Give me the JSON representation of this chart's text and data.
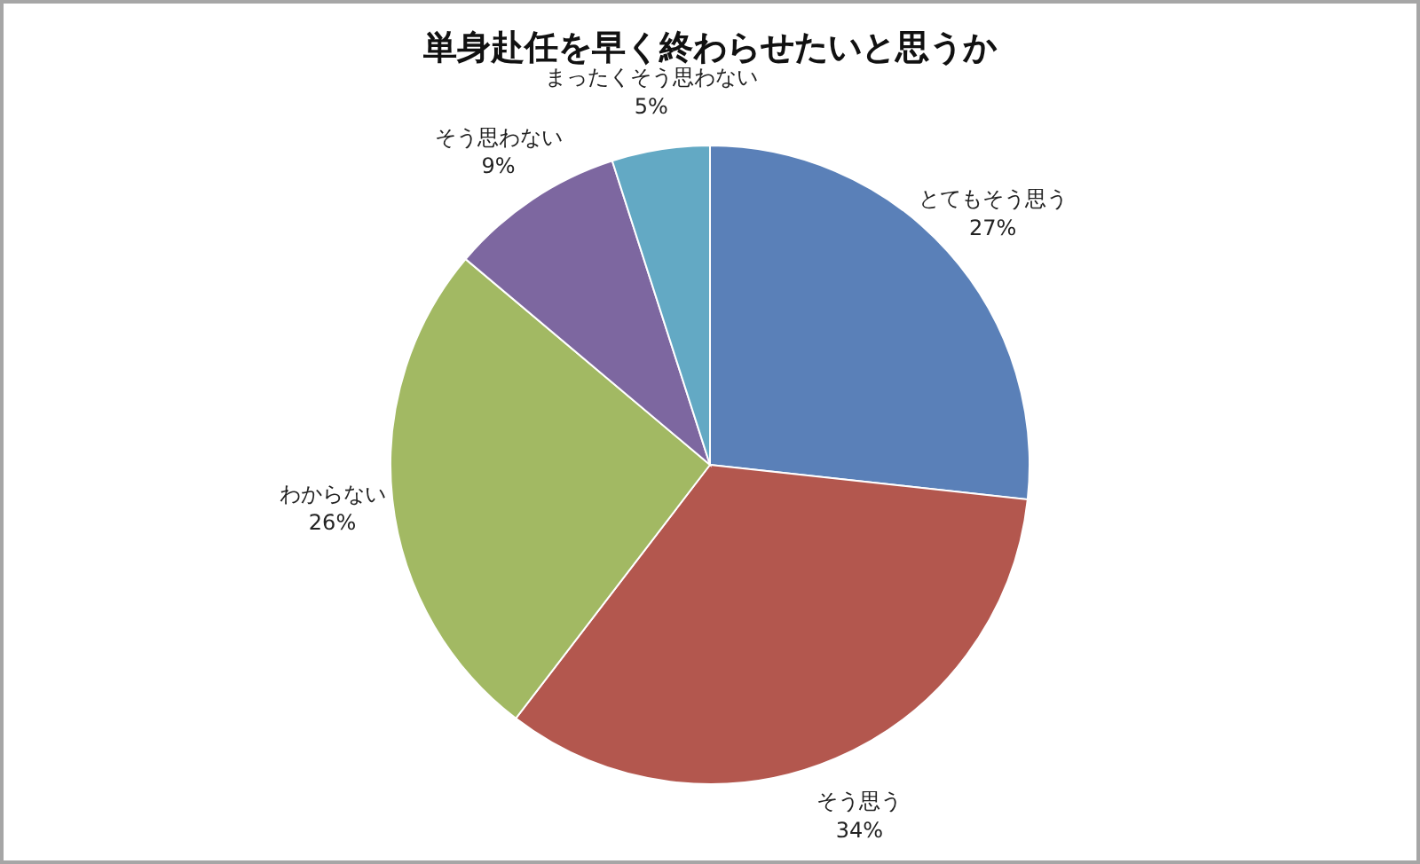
{
  "chart_data": {
    "type": "pie",
    "title": "単身赴任を早く終わらせたいと思うか",
    "categories": [
      "とてもそう思う",
      "そう思う",
      "わからない",
      "そう思わない",
      "まったくそう思わない"
    ],
    "values": [
      27,
      34,
      26,
      9,
      5
    ],
    "value_labels": [
      "27%",
      "34%",
      "26%",
      "9%",
      "5%"
    ],
    "colors": [
      "#5a80b8",
      "#b3574e",
      "#a2b963",
      "#7d67a0",
      "#63a9c4"
    ]
  }
}
